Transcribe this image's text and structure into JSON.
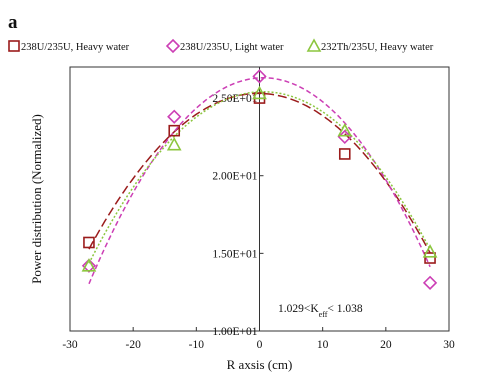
{
  "panel_label": "a",
  "annotation": "1.029<K",
  "annotation_sub": "eff",
  "annotation_tail": "< 1.038",
  "chart_data": {
    "type": "scatter",
    "title": "",
    "xlabel": "R axsis (cm)",
    "ylabel": "Power distribution (Normalized)",
    "xlim": [
      -30,
      30
    ],
    "ylim": [
      10,
      27
    ],
    "x_ticks": [
      -30,
      -20,
      -10,
      0,
      10,
      20,
      30
    ],
    "y_ticks": [
      {
        "value": 10,
        "label": "1.00E+01"
      },
      {
        "value": 15,
        "label": "1.50E+01"
      },
      {
        "value": 20,
        "label": "2.00E+01"
      },
      {
        "value": 25,
        "label": "2.50E+01"
      }
    ],
    "grid": false,
    "legend_position": "top",
    "series": [
      {
        "name": "238U/235U,  Heavy water",
        "marker": "square",
        "color": "#9b1c1c",
        "line_style": "long-dash",
        "points": [
          [
            -27,
            15.7
          ],
          [
            -13.5,
            22.9
          ],
          [
            0,
            25.0
          ],
          [
            13.5,
            21.4
          ],
          [
            27,
            14.7
          ]
        ],
        "fit": [
          -0.01392,
          -0.00456,
          25.3
        ]
      },
      {
        "name": "238U/235U,   Light water",
        "marker": "diamond",
        "color": "#cc3fb5",
        "line_style": "short-dash",
        "points": [
          [
            -27,
            14.2
          ],
          [
            -13.5,
            23.8
          ],
          [
            0,
            26.4
          ],
          [
            13.5,
            22.5
          ],
          [
            27,
            13.1
          ]
        ],
        "fit": [
          -0.01744,
          0.02037,
          26.3
        ]
      },
      {
        "name": "232Th/235U, Heavy water",
        "marker": "triangle",
        "color": "#8cc63f",
        "line_style": "dotted",
        "points": [
          [
            -27,
            14.2
          ],
          [
            -13.5,
            22.0
          ],
          [
            0,
            25.3
          ],
          [
            13.5,
            22.9
          ],
          [
            27,
            15.1
          ]
        ],
        "fit": [
          -0.01453,
          0.01667,
          25.4
        ]
      }
    ]
  }
}
